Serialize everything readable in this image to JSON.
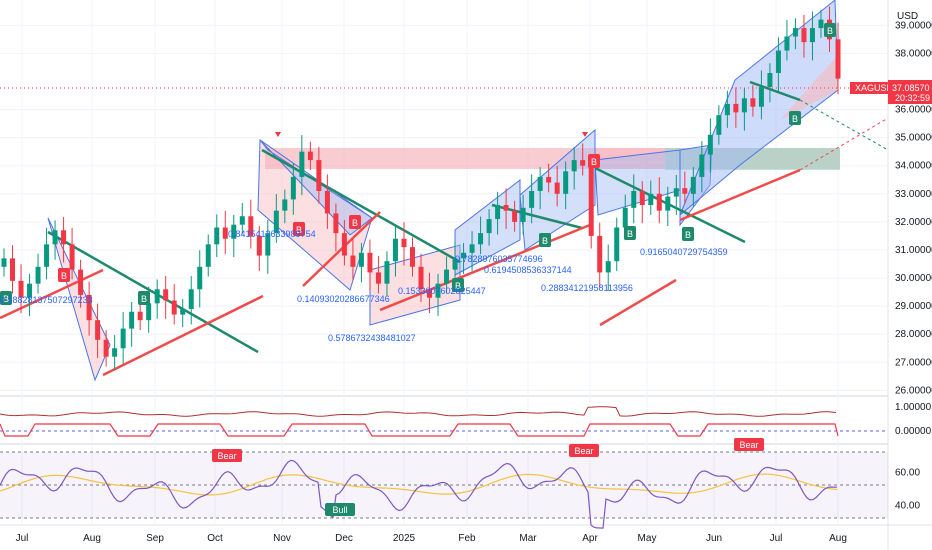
{
  "header": {
    "currency": "USD"
  },
  "chart_data": {
    "type": "candlestick",
    "symbol": "XAGUSD",
    "last_price": "37.08570",
    "countdown": "20:32:59",
    "price_axis_ticks": [
      "39.00000",
      "38.00000",
      "36.00000",
      "35.00000",
      "34.00000",
      "33.00000",
      "32.00000",
      "31.00000",
      "30.00000",
      "29.00000",
      "28.00000",
      "27.00000",
      "26.00000"
    ],
    "price_range": [
      25.8,
      39.9
    ],
    "time_axis_labels": [
      "Jul",
      "Aug",
      "Sep",
      "Oct",
      "Nov",
      "Dec",
      "2025",
      "Feb",
      "Mar",
      "Apr",
      "May",
      "Jun",
      "Jul",
      "Aug"
    ],
    "indicator_a_ticks": [
      "1.00000",
      "0.00000"
    ],
    "rsi_ticks": [
      "60.00",
      "40.00"
    ],
    "rsi_range": [
      28,
      76
    ],
    "annotations": [
      "0.18828137507297233",
      "0.8415412633989754",
      "0.14093020286677346",
      "0.5786732438481027",
      "0.1533007602825447",
      "0.7828976035774696",
      "0.6194508536337144",
      "0.28834121958113956",
      "0.9165040729754359"
    ],
    "markers": [
      "B",
      "B",
      "B",
      "B",
      "B",
      "B",
      "B",
      "B",
      "B",
      "B",
      "B",
      "B"
    ],
    "rsi_labels": [
      "Bear",
      "Bull",
      "Bear",
      "Bear"
    ],
    "closes": [
      30.7,
      29.9,
      29.3,
      29.8,
      30.4,
      31.2,
      31.7,
      31.2,
      30.3,
      29.4,
      28.5,
      27.8,
      27.2,
      27.5,
      28.2,
      28.8,
      28.5,
      29.1,
      29.6,
      29.2,
      28.7,
      28.9,
      29.6,
      30.4,
      31.2,
      31.8,
      31.4,
      31.9,
      32.2,
      31.5,
      30.8,
      31.6,
      32.4,
      32.8,
      33.6,
      34.5,
      34.2,
      33.1,
      32.3,
      31.6,
      30.8,
      30.4,
      30.9,
      30.2,
      29.8,
      30.6,
      31.4,
      31.1,
      30.4,
      29.6,
      29.3,
      29.8,
      30.3,
      30.7,
      30.9,
      31.2,
      31.6,
      32.1,
      32.6,
      32.4,
      32.0,
      32.5,
      33.1,
      33.6,
      33.4,
      33.0,
      33.8,
      34.2,
      34.0,
      31.5,
      30.2,
      30.6,
      31.8,
      32.5,
      33.1,
      32.6,
      33.0,
      32.4,
      32.9,
      33.2,
      33.0,
      33.6,
      34.4,
      35.1,
      35.8,
      36.2,
      35.9,
      36.4,
      36.1,
      36.8,
      37.3,
      38.1,
      38.6,
      38.9,
      38.4,
      38.9,
      39.2,
      38.5,
      37.1
    ]
  }
}
